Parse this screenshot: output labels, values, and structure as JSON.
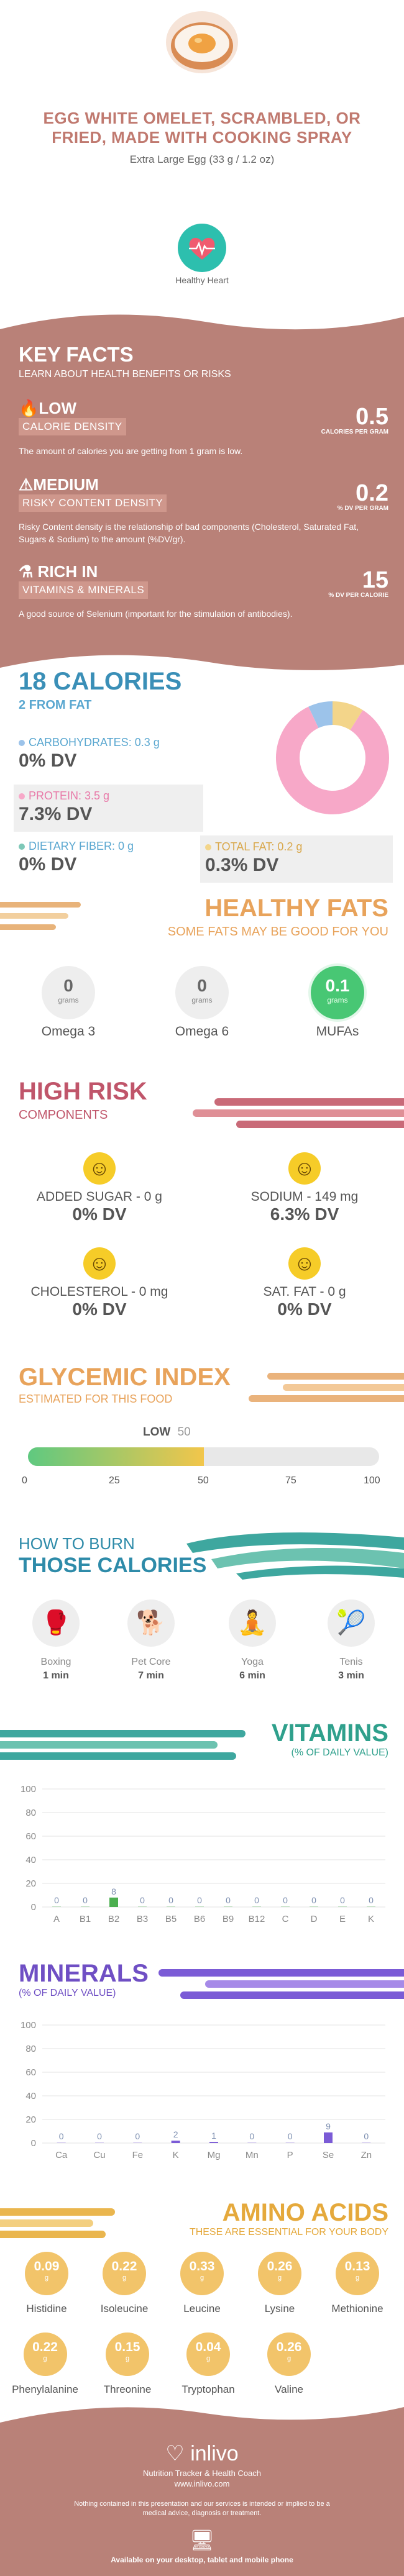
{
  "header": {
    "title": "EGG WHITE OMELET, SCRAMBLED, OR FRIED, MADE WITH COOKING SPRAY",
    "serving": "Extra Large Egg (33 g / 1.2 oz)",
    "badge_label": "Healthy Heart"
  },
  "key_facts": {
    "title": "KEY FACTS",
    "subtitle": "LEARN ABOUT HEALTH BENEFITS OR RISKS",
    "items": [
      {
        "level": "LOW",
        "name": "CALORIE DENSITY",
        "value": "0.5",
        "unit": "CALORIES PER GRAM",
        "desc": "The amount of calories you are getting from 1 gram is low.",
        "icon": "flame-icon"
      },
      {
        "level": "MEDIUM",
        "name": "RISKY CONTENT DENSITY",
        "value": "0.2",
        "unit": "% DV PER GRAM",
        "desc": "Risky Content density is the relationship of bad components (Cholesterol, Saturated Fat, Sugars & Sodium) to the amount (%DV/gr).",
        "icon": "warning-icon"
      },
      {
        "level": "RICH IN",
        "name": "VITAMINS & MINERALS",
        "value": "15",
        "unit": "% DV PER CALORIE",
        "desc": "A good source of Selenium (important for the stimulation of antibodies).",
        "icon": "flask-icon"
      }
    ]
  },
  "calories": {
    "title": "18 CALORIES",
    "subtitle": "2 FROM FAT",
    "carbs_label": "CARBOHYDRATES: 0.3 g",
    "carbs_dv": "0% DV",
    "protein_label": "PROTEIN: 3.5 g",
    "protein_dv": "7.3% DV",
    "fiber_label": "DIETARY FIBER: 0 g",
    "fiber_dv": "0% DV",
    "fat_label": "TOTAL FAT: 0.2 g",
    "fat_dv": "0.3% DV",
    "donut": {
      "protein": 84,
      "carbs": 7,
      "fat": 9
    },
    "colors": {
      "protein": "#f7a8c8",
      "carbs": "#9cc3ea",
      "fat": "#f3d58a"
    }
  },
  "healthy_fats": {
    "title": "HEALTHY FATS",
    "subtitle": "SOME FATS MAY BE GOOD FOR YOU",
    "items": [
      {
        "value": "0",
        "unit": "grams",
        "label": "Omega 3"
      },
      {
        "value": "0",
        "unit": "grams",
        "label": "Omega 6"
      },
      {
        "value": "0.1",
        "unit": "grams",
        "label": "MUFAs"
      }
    ]
  },
  "high_risk": {
    "title": "HIGH RISK",
    "subtitle": "COMPONENTS",
    "items": [
      {
        "label": "ADDED SUGAR - 0 g",
        "dv": "0% DV"
      },
      {
        "label": "SODIUM - 149 mg",
        "dv": "6.3% DV"
      },
      {
        "label": "CHOLESTEROL - 0 mg",
        "dv": "0% DV"
      },
      {
        "label": "SAT. FAT - 0 g",
        "dv": "0% DV"
      }
    ]
  },
  "glycemic": {
    "title": "GLYCEMIC INDEX",
    "subtitle": "ESTIMATED FOR THIS FOOD",
    "level": "LOW",
    "value": "50",
    "ticks": [
      "0",
      "25",
      "50",
      "75",
      "100"
    ]
  },
  "burn": {
    "title1": "HOW TO BURN",
    "title2": "THOSE CALORIES",
    "items": [
      {
        "label": "Boxing",
        "time": "1 min",
        "icon": "boxing-icon"
      },
      {
        "label": "Pet Core",
        "time": "7 min",
        "icon": "dog-walk-icon"
      },
      {
        "label": "Yoga",
        "time": "6 min",
        "icon": "yoga-icon"
      },
      {
        "label": "Tenis",
        "time": "3 min",
        "icon": "tennis-icon"
      }
    ]
  },
  "vitamins": {
    "title": "VITAMINS",
    "subtitle": "(% OF DAILY VALUE)"
  },
  "minerals": {
    "title": "MINERALS",
    "subtitle": "(% OF DAILY VALUE)"
  },
  "chart_data": [
    {
      "type": "bar",
      "categories": [
        "A",
        "B1",
        "B2",
        "B3",
        "B5",
        "B6",
        "B9",
        "B12",
        "C",
        "D",
        "E",
        "K"
      ],
      "values": [
        0,
        0,
        8,
        0,
        0,
        0,
        0,
        0,
        0,
        0,
        0,
        0
      ],
      "ylim": [
        0,
        100
      ],
      "yticks": [
        "0",
        "20",
        "40",
        "60",
        "80",
        "100"
      ],
      "color": "#4caf50"
    },
    {
      "type": "bar",
      "categories": [
        "Ca",
        "Cu",
        "Fe",
        "K",
        "Mg",
        "Mn",
        "P",
        "Se",
        "Zn"
      ],
      "values": [
        0,
        0,
        0,
        2,
        1,
        0,
        0,
        9,
        0
      ],
      "ylim": [
        0,
        100
      ],
      "yticks": [
        "0",
        "20",
        "40",
        "60",
        "80",
        "100"
      ],
      "color": "#7b5bd6"
    }
  ],
  "amino": {
    "title": "AMINO ACIDS",
    "subtitle": "THESE ARE ESSENTIAL FOR YOUR BODY",
    "unit": "g",
    "row1": [
      {
        "value": "0.09",
        "label": "Histidine"
      },
      {
        "value": "0.22",
        "label": "Isoleucine"
      },
      {
        "value": "0.33",
        "label": "Leucine"
      },
      {
        "value": "0.26",
        "label": "Lysine"
      },
      {
        "value": "0.13",
        "label": "Methionine"
      }
    ],
    "row2": [
      {
        "value": "0.22",
        "label": "Phenylalanine"
      },
      {
        "value": "0.15",
        "label": "Threonine"
      },
      {
        "value": "0.04",
        "label": "Tryptophan"
      },
      {
        "value": "0.26",
        "label": "Valine"
      }
    ]
  },
  "footer": {
    "brand": "inlivo",
    "tagline": "Nutrition Tracker & Health Coach",
    "url": "www.inlivo.com",
    "disclaimer": "Nothing contained in this presentation and our services is intended or implied to be a medical advice, diagnosis or treatment.",
    "available": "Available on your desktop, tablet and mobile phone"
  }
}
